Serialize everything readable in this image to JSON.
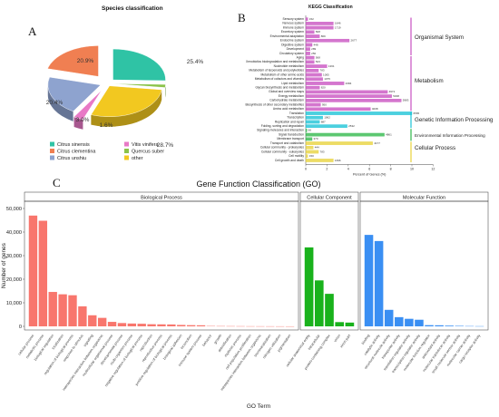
{
  "panels": {
    "a": "A",
    "b": "B",
    "c": "C"
  },
  "pie": {
    "title": "Species classification",
    "slices": [
      {
        "name": "Citrus sinensis",
        "value": 25.4,
        "label": "25.4%",
        "color": "#2fc3a5"
      },
      {
        "name": "Quercus suber",
        "value": 1.6,
        "label": "1.6%",
        "color": "#8bc34a"
      },
      {
        "name": "other",
        "value": 28.7,
        "label": "28.7%",
        "color": "#f2c820"
      },
      {
        "name": "Vitis vinifera",
        "value": 3.0,
        "label": "3.0%",
        "color": "#e879c6"
      },
      {
        "name": "Citrus unshiu",
        "value": 20.4,
        "label": "20.4%",
        "color": "#8ea3cf"
      },
      {
        "name": "Citrus clementina",
        "value": 20.9,
        "label": "20.9%",
        "color": "#f07f52"
      }
    ],
    "legend": [
      {
        "name": "Citrus sinensis",
        "color": "#2fc3a5"
      },
      {
        "name": "Vitis vinifera",
        "color": "#e879c6"
      },
      {
        "name": "Citrus clementina",
        "color": "#f07f52"
      },
      {
        "name": "Quercus suber",
        "color": "#8bc34a"
      },
      {
        "name": "Citrus unshiu",
        "color": "#8ea3cf"
      },
      {
        "name": "other",
        "color": "#f2c820"
      }
    ]
  },
  "kegg": {
    "title": "KEGG Classification",
    "xlabel": "Percent of Genes (%)",
    "xticks": [
      "0",
      "2",
      "4",
      "6",
      "8",
      "10",
      "12"
    ],
    "xlim": [
      0,
      12
    ],
    "groups": [
      {
        "name": "Organismal System",
        "color": "#c850c0"
      },
      {
        "name": "Metabolism",
        "color": "#c850c0"
      },
      {
        "name": "Genetic Information Processing",
        "color": "#19c3d6"
      },
      {
        "name": "Environmental Information Processing",
        "color": "#2fb84a"
      },
      {
        "name": "Cellular Process",
        "color": "#e8d23a"
      }
    ],
    "bars": [
      {
        "label": "Sensory system",
        "value": 0.2,
        "count": "152",
        "color": "#c850c0"
      },
      {
        "label": "Nervous system",
        "value": 2.6,
        "count": "1646",
        "color": "#c850c0"
      },
      {
        "label": "Immune system",
        "value": 2.6,
        "count": "1719",
        "color": "#c850c0"
      },
      {
        "label": "Excretory system",
        "value": 0.8,
        "count": "508",
        "color": "#c850c0"
      },
      {
        "label": "Environmental adaptation",
        "value": 1.3,
        "count": "869",
        "color": "#c850c0"
      },
      {
        "label": "Endocrine system",
        "value": 4.1,
        "count": "2677",
        "color": "#c850c0"
      },
      {
        "label": "Digestive system",
        "value": 0.6,
        "count": "448",
        "color": "#c850c0"
      },
      {
        "label": "Development",
        "value": 0.4,
        "count": "289",
        "color": "#c850c0"
      },
      {
        "label": "Circulatory system",
        "value": 0.4,
        "count": "250",
        "color": "#c850c0"
      },
      {
        "label": "Aging",
        "value": 0.8,
        "count": "568",
        "color": "#c850c0"
      },
      {
        "label": "Xenobiotics biodegradation and metabolism",
        "value": 0.8,
        "count": "523",
        "color": "#c850c0"
      },
      {
        "label": "Nucleotide metabolism",
        "value": 2.0,
        "count": "1361",
        "color": "#c850c0"
      },
      {
        "label": "Metabolism of terpenoids and polyketides",
        "value": 1.2,
        "count": "783",
        "color": "#c850c0"
      },
      {
        "label": "Metabolism of other amino acids",
        "value": 1.5,
        "count": "1005",
        "color": "#c850c0"
      },
      {
        "label": "Metabolism of cofactors and vitamins",
        "value": 1.6,
        "count": "1075",
        "color": "#c850c0"
      },
      {
        "label": "Lipid metabolism",
        "value": 3.6,
        "count": "2384",
        "color": "#c850c0"
      },
      {
        "label": "Glycan biosynthesis and metabolism",
        "value": 1.3,
        "count": "820",
        "color": "#c850c0"
      },
      {
        "label": "Global and overview maps",
        "value": 7.7,
        "count": "4972",
        "color": "#c850c0"
      },
      {
        "label": "Energy metabolism",
        "value": 8.1,
        "count": "5308",
        "color": "#c850c0"
      },
      {
        "label": "Carbohydrate metabolism",
        "value": 9.0,
        "count": "5983",
        "color": "#c850c0"
      },
      {
        "label": "Biosynthesis of other secondary metabolites",
        "value": 1.4,
        "count": "950",
        "color": "#c850c0"
      },
      {
        "label": "Amino acid metabolism",
        "value": 6.1,
        "count": "4008",
        "color": "#c850c0"
      },
      {
        "label": "Translation",
        "value": 10.0,
        "count": "6565",
        "color": "#19c3d6"
      },
      {
        "label": "Transcription",
        "value": 1.6,
        "count": "1062",
        "color": "#19c3d6"
      },
      {
        "label": "Replication and repair",
        "value": 1.3,
        "count": "887",
        "color": "#19c3d6"
      },
      {
        "label": "Folding, sorting and degradation",
        "value": 3.9,
        "count": "2532",
        "color": "#19c3d6"
      },
      {
        "label": "Signaling molecules and interaction",
        "value": 0.1,
        "count": "66",
        "color": "#2fb84a"
      },
      {
        "label": "Signal transduction",
        "value": 7.4,
        "count": "4861",
        "color": "#2fb84a"
      },
      {
        "label": "Membrane transport",
        "value": 0.6,
        "count": "370",
        "color": "#2fb84a"
      },
      {
        "label": "Transport and catabolism",
        "value": 6.3,
        "count": "4177",
        "color": "#e8d23a"
      },
      {
        "label": "Cellular community - prokaryotes",
        "value": 0.7,
        "count": "444",
        "color": "#e8d23a"
      },
      {
        "label": "Cellular community - eukaryotes",
        "value": 1.2,
        "count": "783",
        "color": "#e8d23a"
      },
      {
        "label": "Cell motility",
        "value": 0.2,
        "count": "150",
        "color": "#e8d23a"
      },
      {
        "label": "Cell growth and death",
        "value": 2.6,
        "count": "1696",
        "color": "#e8d23a"
      }
    ]
  },
  "chart_data": [
    {
      "type": "pie",
      "title": "Species classification",
      "categories": [
        "Citrus sinensis",
        "Quercus suber",
        "other",
        "Vitis vinifera",
        "Citrus unshiu",
        "Citrus clementina"
      ],
      "values": [
        25.4,
        1.6,
        28.7,
        3.0,
        20.4,
        20.9
      ]
    },
    {
      "type": "bar",
      "title": "KEGG Classification",
      "xlabel": "Percent of Genes (%)",
      "xlim": [
        0,
        12
      ]
    },
    {
      "type": "bar",
      "title": "Gene Function Classification (GO)",
      "xlabel": "GO Term",
      "ylabel": "Number of genes",
      "ylim": [
        0,
        50000
      ],
      "yticks": [
        "0",
        "10,000",
        "20,000",
        "30,000",
        "40,000",
        "50,000"
      ],
      "facets": [
        {
          "name": "Biological Process",
          "color": "#f8766d",
          "categories": [
            "cellular process",
            "metabolic process",
            "biological regulation",
            "localization",
            "regulation of biological process",
            "response to stimulus",
            "signaling",
            "interspecies interaction between organisms",
            "multicellular organismal process",
            "developmental process",
            "multi-organism process",
            "negative regulation of biological process",
            "reproduction",
            "reproductive process",
            "positive regulation of biological process",
            "biological adhesion",
            "locomotion",
            "immune system process",
            "behavior",
            "growth",
            "detoxification",
            "rhythmic process",
            "cell population proliferation",
            "intraspecies interaction between organisms",
            "biomineralization",
            "nitrogen utilization",
            "pigmentation"
          ],
          "values": [
            47000,
            44800,
            14600,
            13600,
            13200,
            8500,
            4700,
            3600,
            1900,
            1400,
            1200,
            1100,
            900,
            850,
            800,
            600,
            500,
            450,
            150,
            120,
            100,
            80,
            60,
            50,
            40,
            30,
            20
          ]
        },
        {
          "name": "Cellular Component",
          "color": "#19b21c",
          "categories": [
            "cellular anatomical entity",
            "intracellular",
            "protein-containing complex",
            "virion",
            "virion part"
          ],
          "values": [
            33500,
            19500,
            13800,
            1800,
            1600
          ]
        },
        {
          "name": "Molecular Function",
          "color": "#3a8ff3",
          "categories": [
            "binding",
            "catalytic activity",
            "structural molecule activity",
            "transporter activity",
            "translation regulator activity",
            "transcription regulator activity",
            "molecular function regulator",
            "antioxidant activity",
            "molecular transducer activity",
            "small molecule sensor activity",
            "molecular carrier activity",
            "cargo receptor activity"
          ],
          "values": [
            38800,
            36200,
            7000,
            3900,
            3200,
            2800,
            500,
            450,
            300,
            200,
            120,
            80
          ]
        }
      ]
    }
  ]
}
